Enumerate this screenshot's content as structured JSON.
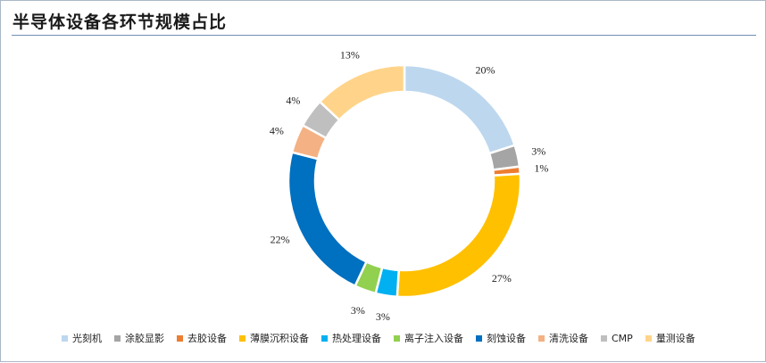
{
  "chart_data": {
    "type": "pie",
    "variant": "donut",
    "title": "半导体设备各环节规模占比",
    "categories": [
      "光刻机",
      "涂胶显影",
      "去胶设备",
      "薄膜沉积设备",
      "热处理设备",
      "离子注入设备",
      "刻蚀设备",
      "清洗设备",
      "CMP",
      "量测设备"
    ],
    "values": [
      20,
      3,
      1,
      27,
      3,
      3,
      22,
      4,
      4,
      13
    ],
    "value_labels": [
      "20%",
      "3%",
      "1%",
      "27%",
      "3%",
      "3%",
      "22%",
      "4%",
      "4%",
      "13%"
    ],
    "colors": [
      "#bdd7ee",
      "#a5a5a5",
      "#ed7d31",
      "#ffc000",
      "#00b0f0",
      "#92d050",
      "#0070c0",
      "#f4b183",
      "#bfbfbf",
      "#ffd48a"
    ],
    "legend_position": "bottom",
    "start_angle_deg": 0,
    "direction": "clockwise"
  }
}
